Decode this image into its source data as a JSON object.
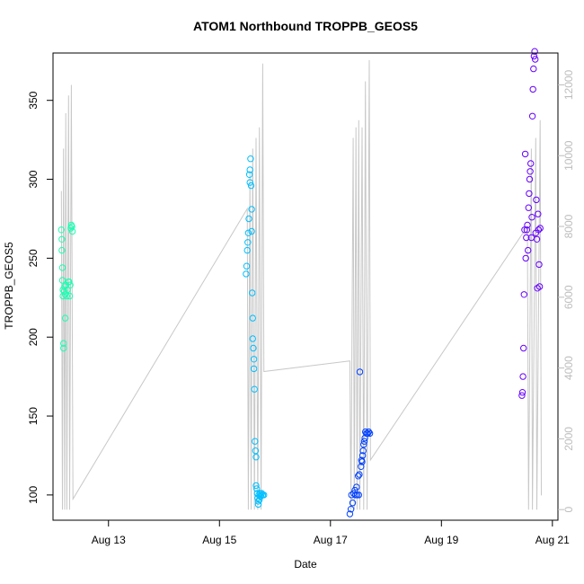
{
  "chart_data": {
    "type": "scatter",
    "title": "ATOM1 Northbound TROPPB_GEOS5",
    "xlabel": "Date",
    "ylabel": "TROPPB_GEOS5",
    "x_ticks": [
      {
        "label": "Aug 13",
        "day": 13
      },
      {
        "label": "Aug 15",
        "day": 15
      },
      {
        "label": "Aug 17",
        "day": 17
      },
      {
        "label": "Aug 19",
        "day": 19
      },
      {
        "label": "Aug 21",
        "day": 21
      }
    ],
    "xlim": [
      12.0,
      21.1
    ],
    "ylim": [
      84,
      380
    ],
    "y_ticks": [
      100,
      150,
      200,
      250,
      300,
      350
    ],
    "y2lim": [
      -300,
      12900
    ],
    "y2_ticks": [
      0,
      2000,
      4000,
      6000,
      8000,
      10000,
      12000
    ],
    "grid": false,
    "altitude_color": "#c8c8c8",
    "altitude_line": [
      [
        12.15,
        9000
      ],
      [
        12.17,
        0
      ],
      [
        12.19,
        10200
      ],
      [
        12.21,
        0
      ],
      [
        12.23,
        11200
      ],
      [
        12.25,
        0
      ],
      [
        12.28,
        11700
      ],
      [
        12.3,
        0
      ],
      [
        12.33,
        12000
      ],
      [
        12.36,
        300
      ],
      [
        15.5,
        8500
      ],
      [
        15.52,
        0
      ],
      [
        15.55,
        9500
      ],
      [
        15.57,
        0
      ],
      [
        15.6,
        10200
      ],
      [
        15.63,
        0
      ],
      [
        15.66,
        10500
      ],
      [
        15.69,
        0
      ],
      [
        15.72,
        10800
      ],
      [
        15.75,
        0
      ],
      [
        15.78,
        12600
      ],
      [
        15.8,
        3900
      ],
      [
        17.35,
        4200
      ],
      [
        17.37,
        0
      ],
      [
        17.41,
        10500
      ],
      [
        17.43,
        0
      ],
      [
        17.46,
        10800
      ],
      [
        17.48,
        0
      ],
      [
        17.51,
        11000
      ],
      [
        17.53,
        0
      ],
      [
        17.57,
        10800
      ],
      [
        17.6,
        0
      ],
      [
        17.63,
        12100
      ],
      [
        17.66,
        0
      ],
      [
        17.7,
        12700
      ],
      [
        17.72,
        1400
      ],
      [
        20.55,
        8000
      ],
      [
        20.57,
        0
      ],
      [
        20.62,
        10200
      ],
      [
        20.64,
        0
      ],
      [
        20.7,
        10500
      ],
      [
        20.72,
        0
      ],
      [
        20.78,
        11000
      ],
      [
        20.8,
        400
      ]
    ],
    "series": [
      {
        "color": "#1affb3",
        "x": [
          12.15,
          12.16,
          12.16,
          12.17,
          12.17,
          12.18,
          12.18,
          12.19,
          12.19,
          12.2,
          12.21,
          12.22,
          12.22,
          12.23,
          12.25,
          12.26,
          12.28,
          12.29,
          12.3,
          12.31,
          12.32,
          12.33,
          12.34,
          12.35
        ],
        "y": [
          268,
          262,
          255,
          244,
          236,
          230,
          226,
          196,
          193,
          229,
          232,
          212,
          227,
          233,
          226,
          230,
          235,
          235,
          226,
          233,
          269,
          271,
          270,
          267
        ]
      },
      {
        "color": "#00bfff",
        "x": [
          15.48,
          15.49,
          15.5,
          15.51,
          15.52,
          15.53,
          15.54,
          15.55,
          15.55,
          15.56,
          15.57,
          15.58,
          15.58,
          15.59,
          15.6,
          15.6,
          15.61,
          15.62,
          15.62,
          15.63,
          15.64,
          15.65,
          15.66,
          15.66,
          15.67,
          15.68,
          15.69,
          15.7,
          15.7,
          15.71,
          15.72,
          15.73,
          15.74,
          15.75,
          15.76,
          15.78,
          15.8
        ],
        "y": [
          240,
          245,
          255,
          260,
          266,
          275,
          303,
          306,
          298,
          313,
          296,
          281,
          267,
          228,
          212,
          199,
          193,
          186,
          180,
          167,
          134,
          128,
          124,
          106,
          104,
          101,
          98,
          96,
          94,
          100,
          97,
          101,
          99,
          100,
          101,
          100,
          100
        ]
      },
      {
        "color": "#0040ff",
        "x": [
          17.35,
          17.37,
          17.38,
          17.4,
          17.42,
          17.44,
          17.45,
          17.47,
          17.48,
          17.5,
          17.51,
          17.52,
          17.53,
          17.55,
          17.56,
          17.57,
          17.58,
          17.59,
          17.6,
          17.61,
          17.62,
          17.63,
          17.65,
          17.67,
          17.69,
          17.71
        ],
        "y": [
          88,
          91,
          100,
          95,
          101,
          103,
          100,
          105,
          100,
          112,
          100,
          113,
          178,
          118,
          122,
          121,
          125,
          128,
          132,
          134,
          136,
          140,
          139,
          139,
          140,
          139
        ]
      },
      {
        "color": "#6600ff",
        "x": [
          20.45,
          20.46,
          20.47,
          20.48,
          20.49,
          20.5,
          20.51,
          20.52,
          20.53,
          20.54,
          20.55,
          20.56,
          20.57,
          20.58,
          20.59,
          20.6,
          20.61,
          20.62,
          20.63,
          20.64,
          20.65,
          20.66,
          20.67,
          20.68,
          20.69,
          20.7,
          20.71,
          20.72,
          20.73,
          20.74,
          20.75,
          20.76,
          20.77,
          20.78
        ],
        "y": [
          163,
          165,
          175,
          193,
          227,
          268,
          316,
          250,
          263,
          268,
          271,
          255,
          282,
          291,
          300,
          305,
          310,
          263,
          276,
          340,
          357,
          370,
          378,
          381,
          376,
          266,
          287,
          262,
          231,
          278,
          268,
          246,
          232,
          269
        ]
      }
    ]
  }
}
